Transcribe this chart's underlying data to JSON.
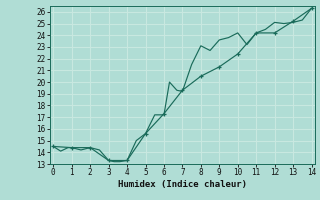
{
  "xlabel": "Humidex (Indice chaleur)",
  "bg_color": "#b0ddd5",
  "grid_color": "#c8e8e0",
  "line_color": "#1a6b5a",
  "ylim": [
    13,
    26.5
  ],
  "xlim": [
    -0.2,
    14.2
  ],
  "yticks": [
    13,
    14,
    15,
    16,
    17,
    18,
    19,
    20,
    21,
    22,
    23,
    24,
    25,
    26
  ],
  "xticks": [
    0,
    1,
    2,
    3,
    4,
    5,
    6,
    7,
    8,
    9,
    10,
    11,
    12,
    13,
    14
  ],
  "line1_x": [
    0,
    0.4,
    0.8,
    1.0,
    1.5,
    2.0,
    2.5,
    3.0,
    3.3,
    3.6,
    4.0,
    4.5,
    5.0,
    5.5,
    6.0,
    6.3,
    6.7,
    7.0,
    7.5,
    8.0,
    8.5,
    9.0,
    9.5,
    10.0,
    10.5,
    11.0,
    11.5,
    12.0,
    12.5,
    13.0,
    13.5,
    14.0
  ],
  "line1_y": [
    14.5,
    14.1,
    14.4,
    14.4,
    14.2,
    14.4,
    14.2,
    13.3,
    13.2,
    13.2,
    13.3,
    15.0,
    15.6,
    17.2,
    17.2,
    20.0,
    19.3,
    19.2,
    21.5,
    23.1,
    22.7,
    23.6,
    23.8,
    24.2,
    23.2,
    24.2,
    24.5,
    25.1,
    25.0,
    25.1,
    25.3,
    26.3
  ],
  "line2_x": [
    0,
    1,
    2,
    3,
    4,
    5,
    6,
    7,
    8,
    9,
    10,
    11,
    12,
    13,
    14
  ],
  "line2_y": [
    14.5,
    14.4,
    14.4,
    13.3,
    13.3,
    15.6,
    17.3,
    19.3,
    20.5,
    21.3,
    22.4,
    24.2,
    24.2,
    25.2,
    26.3
  ]
}
